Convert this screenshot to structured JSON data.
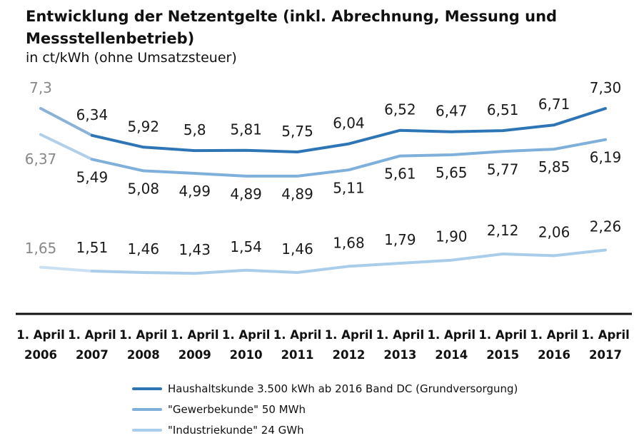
{
  "header": {
    "title": "Entwicklung der Netzentgelte (inkl. Abrechnung, Messung und Messstellenbetrieb)",
    "subtitle": "in ct/kWh (ohne Umsatzsteuer)"
  },
  "chart_data": {
    "type": "line",
    "title": "Entwicklung der Netzentgelte (inkl. Abrechnung, Messung und Messstellenbetrieb)",
    "subtitle": "in ct/kWh (ohne Umsatzsteuer)",
    "xlabel": "",
    "ylabel": "",
    "ylim": [
      0,
      8
    ],
    "grid": false,
    "legend_position": "bottom",
    "categories": [
      "1. April 2006",
      "1. April 2007",
      "1. April 2008",
      "1. April 2009",
      "1. April 2010",
      "1. April 2011",
      "1. April 2012",
      "1. April 2013",
      "1. April 2014",
      "1. April 2015",
      "1. April 2016",
      "1. April 2017"
    ],
    "category_lines": [
      [
        "1. April",
        "2006"
      ],
      [
        "1. April",
        "2007"
      ],
      [
        "1. April",
        "2008"
      ],
      [
        "1. April",
        "2009"
      ],
      [
        "1. April",
        "2010"
      ],
      [
        "1. April",
        "2011"
      ],
      [
        "1. April",
        "2012"
      ],
      [
        "1. April",
        "2013"
      ],
      [
        "1. April",
        "2014"
      ],
      [
        "1. April",
        "2015"
      ],
      [
        "1. April",
        "2016"
      ],
      [
        "1. April",
        "2017"
      ]
    ],
    "series": [
      {
        "name": "Haushaltskunde 3.500 kWh ab 2016 Band DC (Grundversorgung)",
        "color": "#2e75b6",
        "values": [
          7.3,
          6.34,
          5.92,
          5.8,
          5.81,
          5.75,
          6.04,
          6.52,
          6.47,
          6.51,
          6.71,
          7.3
        ],
        "labels": [
          "7,3",
          "6,34",
          "5,92",
          "5,8",
          "5,81",
          "5,75",
          "6,04",
          "6,52",
          "6,47",
          "6,51",
          "6,71",
          "7,30"
        ]
      },
      {
        "name": "\"Gewerbekunde\" 50 MWh",
        "color": "#7fb0dc",
        "values": [
          6.37,
          5.49,
          5.08,
          4.99,
          4.89,
          4.89,
          5.11,
          5.61,
          5.65,
          5.77,
          5.85,
          6.19
        ],
        "labels": [
          "6,37",
          "5,49",
          "5,08",
          "4,99",
          "4,89",
          "4,89",
          "5,11",
          "5,61",
          "5,65",
          "5,77",
          "5,85",
          "6,19"
        ]
      },
      {
        "name": "\"Industriekunde\" 24 GWh",
        "color": "#a9cdea",
        "values": [
          1.65,
          1.51,
          1.46,
          1.43,
          1.54,
          1.46,
          1.68,
          1.79,
          1.9,
          2.12,
          2.06,
          2.26
        ],
        "labels": [
          "1,65",
          "1,51",
          "1,46",
          "1,43",
          "1,54",
          "1,46",
          "1,68",
          "1,79",
          "1,90",
          "2,12",
          "2,06",
          "2,26"
        ]
      }
    ],
    "first_label_color": "#888888"
  }
}
